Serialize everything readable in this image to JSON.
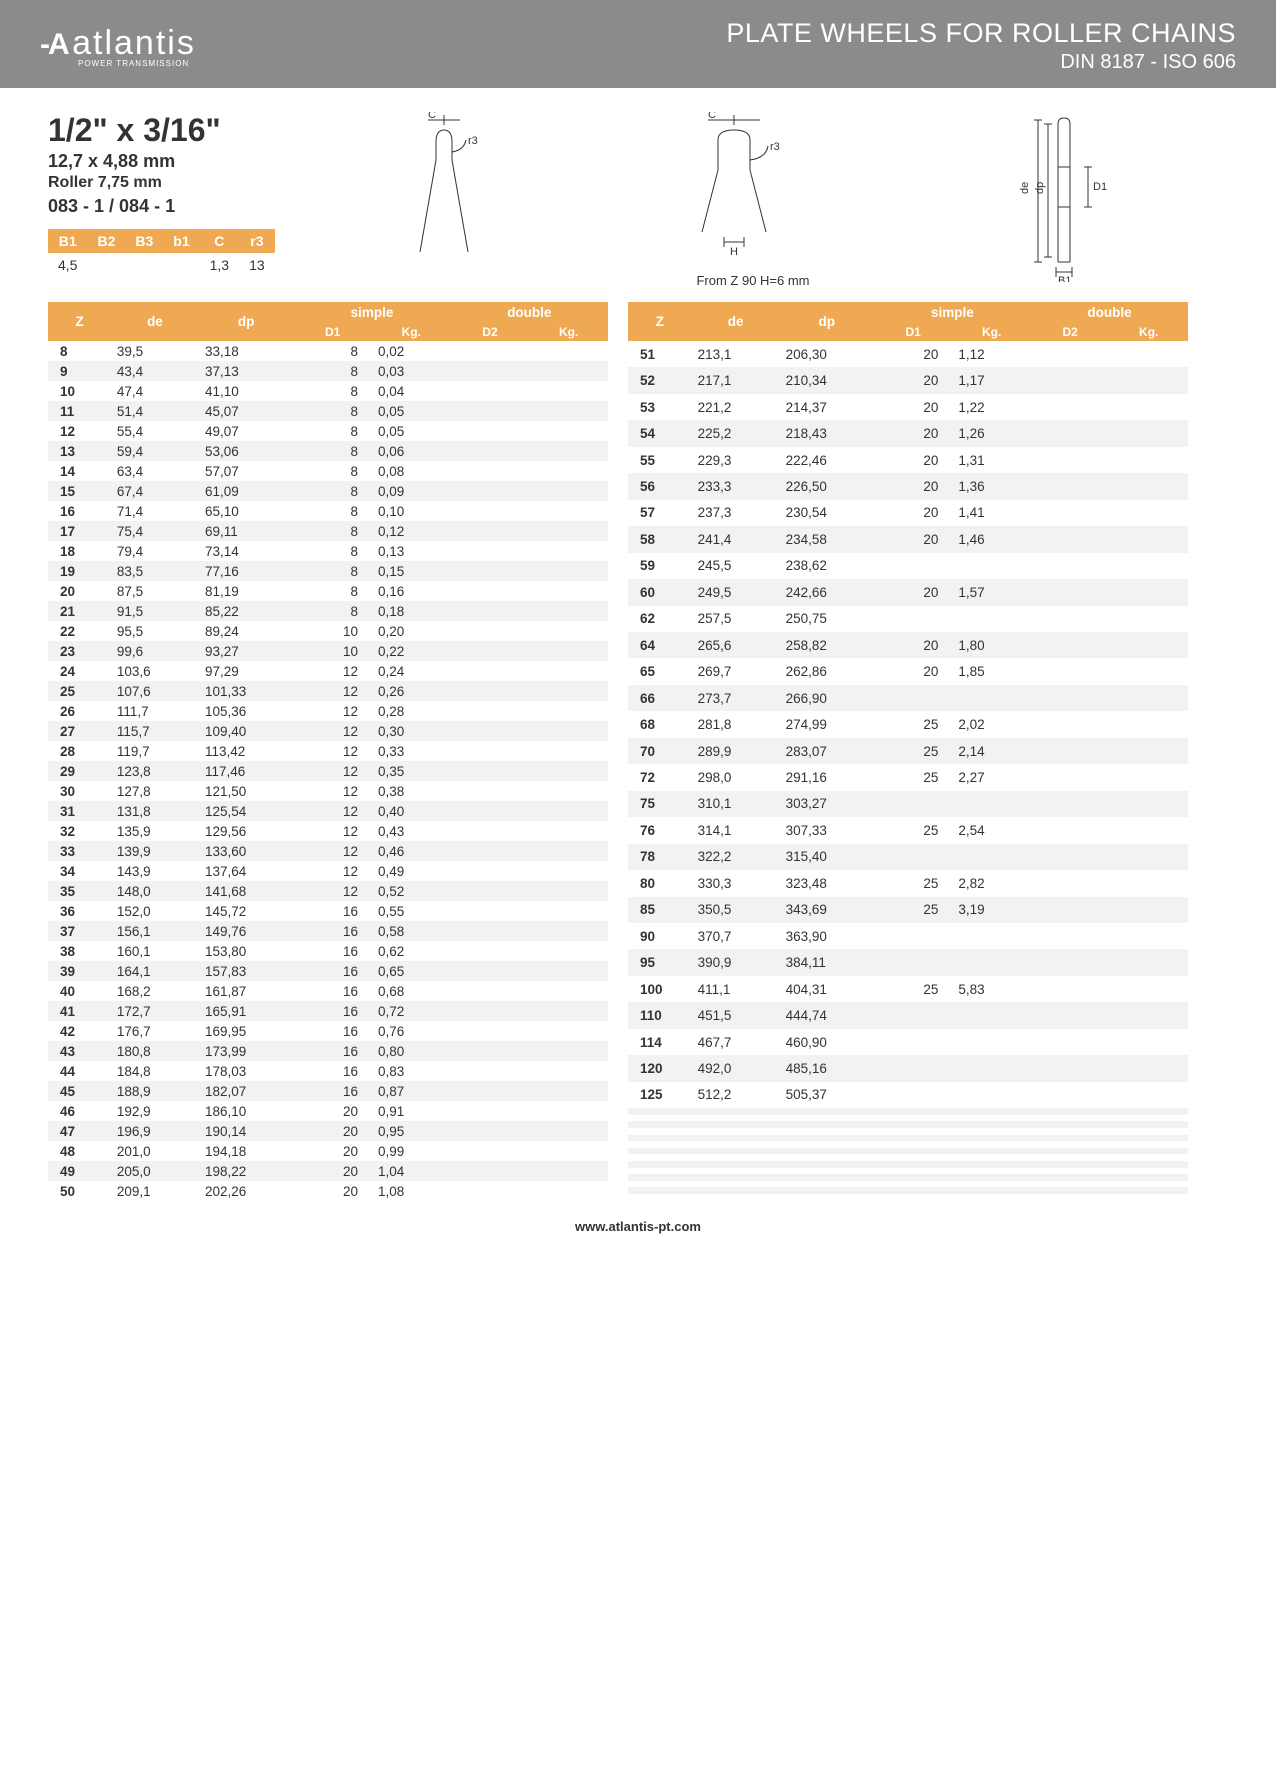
{
  "header": {
    "logo_prefix": "-A",
    "logo_text": "atlantis",
    "logo_sub": "POWER TRANSMISSION",
    "title1": "PLATE WHEELS FOR ROLLER CHAINS",
    "title2": "DIN 8187 - ISO 606"
  },
  "spec": {
    "size": "1/2\" x 3/16\"",
    "mm": "12,7 x 4,88 mm",
    "roller": "Roller 7,75 mm",
    "code": "083 - 1 / 084 - 1"
  },
  "small_table": {
    "headers": [
      "B1",
      "B2",
      "B3",
      "b1",
      "C",
      "r3"
    ],
    "row": [
      "4,5",
      "",
      "",
      "",
      "1,3",
      "13"
    ]
  },
  "note": "From Z 90 H=6 mm",
  "data_headers": {
    "z": "Z",
    "de": "de",
    "dp": "dp",
    "simple": "simple",
    "double": "double",
    "d1": "D1",
    "kg": "Kg.",
    "d2": "D2",
    "kg2": "Kg."
  },
  "table_left": [
    [
      "8",
      "39,5",
      "33,18",
      "8",
      "0,02",
      "",
      ""
    ],
    [
      "9",
      "43,4",
      "37,13",
      "8",
      "0,03",
      "",
      ""
    ],
    [
      "10",
      "47,4",
      "41,10",
      "8",
      "0,04",
      "",
      ""
    ],
    [
      "11",
      "51,4",
      "45,07",
      "8",
      "0,05",
      "",
      ""
    ],
    [
      "12",
      "55,4",
      "49,07",
      "8",
      "0,05",
      "",
      ""
    ],
    [
      "13",
      "59,4",
      "53,06",
      "8",
      "0,06",
      "",
      ""
    ],
    [
      "14",
      "63,4",
      "57,07",
      "8",
      "0,08",
      "",
      ""
    ],
    [
      "15",
      "67,4",
      "61,09",
      "8",
      "0,09",
      "",
      ""
    ],
    [
      "16",
      "71,4",
      "65,10",
      "8",
      "0,10",
      "",
      ""
    ],
    [
      "17",
      "75,4",
      "69,11",
      "8",
      "0,12",
      "",
      ""
    ],
    [
      "18",
      "79,4",
      "73,14",
      "8",
      "0,13",
      "",
      ""
    ],
    [
      "19",
      "83,5",
      "77,16",
      "8",
      "0,15",
      "",
      ""
    ],
    [
      "20",
      "87,5",
      "81,19",
      "8",
      "0,16",
      "",
      ""
    ],
    [
      "21",
      "91,5",
      "85,22",
      "8",
      "0,18",
      "",
      ""
    ],
    [
      "22",
      "95,5",
      "89,24",
      "10",
      "0,20",
      "",
      ""
    ],
    [
      "23",
      "99,6",
      "93,27",
      "10",
      "0,22",
      "",
      ""
    ],
    [
      "24",
      "103,6",
      "97,29",
      "12",
      "0,24",
      "",
      ""
    ],
    [
      "25",
      "107,6",
      "101,33",
      "12",
      "0,26",
      "",
      ""
    ],
    [
      "26",
      "111,7",
      "105,36",
      "12",
      "0,28",
      "",
      ""
    ],
    [
      "27",
      "115,7",
      "109,40",
      "12",
      "0,30",
      "",
      ""
    ],
    [
      "28",
      "119,7",
      "113,42",
      "12",
      "0,33",
      "",
      ""
    ],
    [
      "29",
      "123,8",
      "117,46",
      "12",
      "0,35",
      "",
      ""
    ],
    [
      "30",
      "127,8",
      "121,50",
      "12",
      "0,38",
      "",
      ""
    ],
    [
      "31",
      "131,8",
      "125,54",
      "12",
      "0,40",
      "",
      ""
    ],
    [
      "32",
      "135,9",
      "129,56",
      "12",
      "0,43",
      "",
      ""
    ],
    [
      "33",
      "139,9",
      "133,60",
      "12",
      "0,46",
      "",
      ""
    ],
    [
      "34",
      "143,9",
      "137,64",
      "12",
      "0,49",
      "",
      ""
    ],
    [
      "35",
      "148,0",
      "141,68",
      "12",
      "0,52",
      "",
      ""
    ],
    [
      "36",
      "152,0",
      "145,72",
      "16",
      "0,55",
      "",
      ""
    ],
    [
      "37",
      "156,1",
      "149,76",
      "16",
      "0,58",
      "",
      ""
    ],
    [
      "38",
      "160,1",
      "153,80",
      "16",
      "0,62",
      "",
      ""
    ],
    [
      "39",
      "164,1",
      "157,83",
      "16",
      "0,65",
      "",
      ""
    ],
    [
      "40",
      "168,2",
      "161,87",
      "16",
      "0,68",
      "",
      ""
    ],
    [
      "41",
      "172,7",
      "165,91",
      "16",
      "0,72",
      "",
      ""
    ],
    [
      "42",
      "176,7",
      "169,95",
      "16",
      "0,76",
      "",
      ""
    ],
    [
      "43",
      "180,8",
      "173,99",
      "16",
      "0,80",
      "",
      ""
    ],
    [
      "44",
      "184,8",
      "178,03",
      "16",
      "0,83",
      "",
      ""
    ],
    [
      "45",
      "188,9",
      "182,07",
      "16",
      "0,87",
      "",
      ""
    ],
    [
      "46",
      "192,9",
      "186,10",
      "20",
      "0,91",
      "",
      ""
    ],
    [
      "47",
      "196,9",
      "190,14",
      "20",
      "0,95",
      "",
      ""
    ],
    [
      "48",
      "201,0",
      "194,18",
      "20",
      "0,99",
      "",
      ""
    ],
    [
      "49",
      "205,0",
      "198,22",
      "20",
      "1,04",
      "",
      ""
    ],
    [
      "50",
      "209,1",
      "202,26",
      "20",
      "1,08",
      "",
      ""
    ]
  ],
  "table_right": [
    [
      "51",
      "213,1",
      "206,30",
      "20",
      "1,12",
      "",
      ""
    ],
    [
      "52",
      "217,1",
      "210,34",
      "20",
      "1,17",
      "",
      ""
    ],
    [
      "53",
      "221,2",
      "214,37",
      "20",
      "1,22",
      "",
      ""
    ],
    [
      "54",
      "225,2",
      "218,43",
      "20",
      "1,26",
      "",
      ""
    ],
    [
      "55",
      "229,3",
      "222,46",
      "20",
      "1,31",
      "",
      ""
    ],
    [
      "56",
      "233,3",
      "226,50",
      "20",
      "1,36",
      "",
      ""
    ],
    [
      "57",
      "237,3",
      "230,54",
      "20",
      "1,41",
      "",
      ""
    ],
    [
      "58",
      "241,4",
      "234,58",
      "20",
      "1,46",
      "",
      ""
    ],
    [
      "59",
      "245,5",
      "238,62",
      "",
      "",
      "",
      ""
    ],
    [
      "60",
      "249,5",
      "242,66",
      "20",
      "1,57",
      "",
      ""
    ],
    [
      "62",
      "257,5",
      "250,75",
      "",
      "",
      "",
      ""
    ],
    [
      "64",
      "265,6",
      "258,82",
      "20",
      "1,80",
      "",
      ""
    ],
    [
      "65",
      "269,7",
      "262,86",
      "20",
      "1,85",
      "",
      ""
    ],
    [
      "66",
      "273,7",
      "266,90",
      "",
      "",
      "",
      ""
    ],
    [
      "68",
      "281,8",
      "274,99",
      "25",
      "2,02",
      "",
      ""
    ],
    [
      "70",
      "289,9",
      "283,07",
      "25",
      "2,14",
      "",
      ""
    ],
    [
      "72",
      "298,0",
      "291,16",
      "25",
      "2,27",
      "",
      ""
    ],
    [
      "75",
      "310,1",
      "303,27",
      "",
      "",
      "",
      ""
    ],
    [
      "76",
      "314,1",
      "307,33",
      "25",
      "2,54",
      "",
      ""
    ],
    [
      "78",
      "322,2",
      "315,40",
      "",
      "",
      "",
      ""
    ],
    [
      "80",
      "330,3",
      "323,48",
      "25",
      "2,82",
      "",
      ""
    ],
    [
      "85",
      "350,5",
      "343,69",
      "25",
      "3,19",
      "",
      ""
    ],
    [
      "90",
      "370,7",
      "363,90",
      "",
      "",
      "",
      ""
    ],
    [
      "95",
      "390,9",
      "384,11",
      "",
      "",
      "",
      ""
    ],
    [
      "100",
      "411,1",
      "404,31",
      "25",
      "5,83",
      "",
      ""
    ],
    [
      "110",
      "451,5",
      "444,74",
      "",
      "",
      "",
      ""
    ],
    [
      "114",
      "467,7",
      "460,90",
      "",
      "",
      "",
      ""
    ],
    [
      "120",
      "492,0",
      "485,16",
      "",
      "",
      "",
      ""
    ],
    [
      "125",
      "512,2",
      "505,37",
      "",
      "",
      "",
      ""
    ],
    [
      "",
      "",
      "",
      "",
      "",
      "",
      ""
    ],
    [
      "",
      "",
      "",
      "",
      "",
      "",
      ""
    ],
    [
      "",
      "",
      "",
      "",
      "",
      "",
      ""
    ],
    [
      "",
      "",
      "",
      "",
      "",
      "",
      ""
    ],
    [
      "",
      "",
      "",
      "",
      "",
      "",
      ""
    ],
    [
      "",
      "",
      "",
      "",
      "",
      "",
      ""
    ],
    [
      "",
      "",
      "",
      "",
      "",
      "",
      ""
    ],
    [
      "",
      "",
      "",
      "",
      "",
      "",
      ""
    ],
    [
      "",
      "",
      "",
      "",
      "",
      "",
      ""
    ],
    [
      "",
      "",
      "",
      "",
      "",
      "",
      ""
    ],
    [
      "",
      "",
      "",
      "",
      "",
      "",
      ""
    ],
    [
      "",
      "",
      "",
      "",
      "",
      "",
      ""
    ],
    [
      "",
      "",
      "",
      "",
      "",
      "",
      ""
    ],
    [
      "",
      "",
      "",
      "",
      "",
      "",
      ""
    ]
  ],
  "footer": "www.atlantis-pt.com",
  "colors": {
    "header_bg": "#8a8b8c",
    "accent": "#f0a953",
    "row_alt": "#f2f2f2"
  }
}
